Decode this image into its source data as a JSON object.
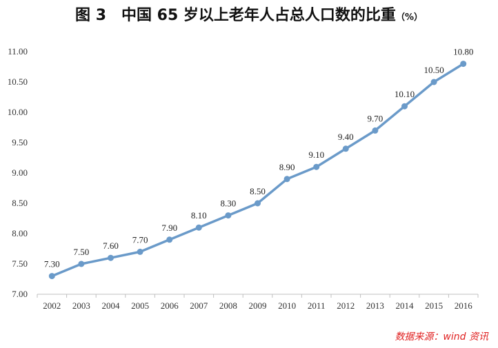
{
  "colors": {
    "line": "#6a9ac9",
    "marker": "#6a9ac9",
    "axis": "#bfbfbf",
    "source": "#e02020"
  },
  "title": {
    "figure": "图 3",
    "main": "中国 65 岁以上老年人占总人口数的比重",
    "unit": "（%）"
  },
  "source": "数据来源：wind 资讯",
  "chart_data": {
    "type": "line",
    "title": "中国 65 岁以上老年人占总人口数的比重（%）",
    "xlabel": "",
    "ylabel": "",
    "categories": [
      "2002",
      "2003",
      "2004",
      "2005",
      "2006",
      "2007",
      "2008",
      "2009",
      "2010",
      "2011",
      "2012",
      "2013",
      "2014",
      "2015",
      "2016"
    ],
    "values": [
      7.3,
      7.5,
      7.6,
      7.7,
      7.9,
      8.1,
      8.3,
      8.5,
      8.9,
      9.1,
      9.4,
      9.7,
      10.1,
      10.5,
      10.8
    ],
    "value_labels": [
      "7.30",
      "7.50",
      "7.60",
      "7.70",
      "7.90",
      "8.10",
      "8.30",
      "8.50",
      "8.90",
      "9.10",
      "9.40",
      "9.70",
      "10.10",
      "10.50",
      "10.80"
    ],
    "ylim": [
      7.0,
      11.0
    ],
    "yticks": [
      "7.00",
      "7.50",
      "8.00",
      "8.50",
      "9.00",
      "9.50",
      "10.00",
      "10.50",
      "11.00"
    ],
    "grid": false,
    "legend": "none"
  }
}
